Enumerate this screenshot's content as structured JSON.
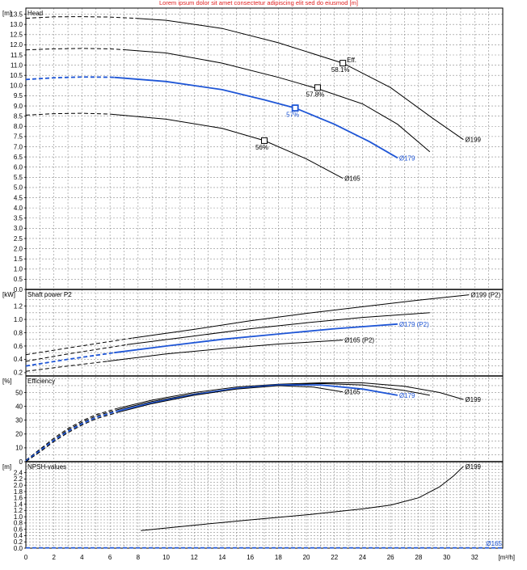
{
  "header_text": "Lorem ipsum dolor sit amet consectetur adipiscing elit sed do eiusmod [m]",
  "colors": {
    "selected": "#1f56d6",
    "other": "#000000"
  },
  "chart_data": {
    "type": "line",
    "x_axis": {
      "unit": "[m³/h]",
      "range": [
        0,
        34
      ],
      "ticks": [
        "0",
        "2",
        "4",
        "6",
        "8",
        "10",
        "12",
        "14",
        "16",
        "18",
        "20",
        "22",
        "24",
        "26",
        "28",
        "30",
        "32"
      ]
    },
    "panels": [
      {
        "id": "head",
        "title": "Head",
        "unit": "[m]",
        "ylim": [
          0,
          13.8
        ],
        "ticks": [
          "0.0",
          "0.5",
          "1.0",
          "1.5",
          "2.0",
          "2.5",
          "3.0",
          "3.5",
          "4.0",
          "4.5",
          "5.0",
          "5.5",
          "6.0",
          "6.5",
          "7.0",
          "7.5",
          "8.0",
          "8.5",
          "9.0",
          "9.5",
          "10.0",
          "10.5",
          "11.0",
          "11.5",
          "12.0",
          "12.5",
          "13.0",
          "13.5"
        ],
        "series": [
          {
            "name": "Ø199",
            "selected": false,
            "dashed_x": [
              0,
              2,
              4,
              6,
              7.8
            ],
            "dashed_y": [
              13.3,
              13.37,
              13.38,
              13.36,
              13.3
            ],
            "x": [
              7.8,
              10,
              14,
              18,
              22.6,
              26,
              29,
              31.2
            ],
            "y": [
              13.3,
              13.2,
              12.8,
              12.1,
              11.1,
              9.9,
              8.4,
              7.35
            ]
          },
          {
            "name": "",
            "selected": false,
            "dashed_x": [
              0,
              2,
              4,
              6,
              7.2
            ],
            "dashed_y": [
              11.75,
              11.8,
              11.82,
              11.8,
              11.75
            ],
            "x": [
              7.2,
              10,
              14,
              18,
              20.8,
              24,
              26.5,
              28.8
            ],
            "y": [
              11.75,
              11.6,
              11.1,
              10.4,
              9.85,
              9.1,
              8.1,
              6.75
            ]
          },
          {
            "name": "Ø179",
            "selected": true,
            "dashed_x": [
              0,
              2,
              4,
              6,
              6.3
            ],
            "dashed_y": [
              10.3,
              10.38,
              10.42,
              10.41,
              10.4
            ],
            "x": [
              6.3,
              10,
              14,
              17,
              19.2,
              22,
              24.5,
              26.5
            ],
            "y": [
              10.4,
              10.2,
              9.8,
              9.3,
              8.9,
              8.1,
              7.25,
              6.45
            ]
          },
          {
            "name": "Ø165",
            "selected": false,
            "dashed_x": [
              0,
              2,
              4,
              6,
              6.0
            ],
            "dashed_y": [
              8.55,
              8.62,
              8.64,
              8.6,
              8.6
            ],
            "x": [
              6.0,
              10,
              14,
              17,
              20,
              22.6
            ],
            "y": [
              8.6,
              8.35,
              7.9,
              7.3,
              6.4,
              5.45
            ]
          }
        ],
        "markers": [
          {
            "x": 22.6,
            "y": 11.1,
            "label": "58.1%",
            "selected": false
          },
          {
            "x": 20.8,
            "y": 9.9,
            "label": "57.8%",
            "selected": false
          },
          {
            "x": 19.2,
            "y": 8.9,
            "label": "57%",
            "selected": true
          },
          {
            "x": 17.0,
            "y": 7.3,
            "label": "56%",
            "selected": false
          }
        ],
        "annotation": "Eff."
      },
      {
        "id": "power",
        "title": "Shaft power P2",
        "unit": "[kW]",
        "ylim": [
          0.15,
          1.45
        ],
        "ticks": [
          "0.2",
          "0.4",
          "0.6",
          "0.8",
          "1.0",
          "1.2"
        ],
        "series": [
          {
            "name": "Ø199 (P2)",
            "selected": false,
            "dashed_x": [
              0,
              3,
              7.6
            ],
            "dashed_y": [
              0.47,
              0.57,
              0.72
            ],
            "x": [
              7.6,
              12,
              16,
              20,
              24,
              28,
              31.6
            ],
            "y": [
              0.72,
              0.85,
              0.98,
              1.09,
              1.19,
              1.29,
              1.37
            ]
          },
          {
            "name": "",
            "selected": false,
            "dashed_x": [
              0,
              3,
              7.2
            ],
            "dashed_y": [
              0.37,
              0.48,
              0.62
            ],
            "x": [
              7.2,
              12,
              16,
              20,
              24,
              28.8
            ],
            "y": [
              0.62,
              0.75,
              0.86,
              0.95,
              1.03,
              1.1
            ]
          },
          {
            "name": "Ø179 (P2)",
            "selected": true,
            "dashed_x": [
              0,
              3,
              6.3
            ],
            "dashed_y": [
              0.3,
              0.4,
              0.5
            ],
            "x": [
              6.3,
              10,
              14,
              18,
              22,
              26.5
            ],
            "y": [
              0.5,
              0.6,
              0.7,
              0.78,
              0.86,
              0.93
            ]
          },
          {
            "name": "Ø165 (P2)",
            "selected": false,
            "dashed_x": [
              0,
              3,
              5.8
            ],
            "dashed_y": [
              0.22,
              0.3,
              0.37
            ],
            "x": [
              5.8,
              10,
              14,
              18,
              22.6
            ],
            "y": [
              0.37,
              0.48,
              0.56,
              0.63,
              0.69
            ]
          }
        ]
      },
      {
        "id": "efficiency",
        "title": "Efficiency",
        "unit": "[%]",
        "ylim": [
          0,
          62
        ],
        "ticks": [
          "0",
          "10",
          "20",
          "30",
          "40",
          "50"
        ],
        "series": [
          {
            "name": "Ø199",
            "selected": false,
            "dashed_x": [
              0,
              1,
              2,
              3,
              4,
              5,
              6.5
            ],
            "dashed_y": [
              1,
              9,
              17,
              24,
              29.5,
              34,
              38.5
            ],
            "x": [
              6.5,
              9,
              12,
              15,
              18,
              21,
              24,
              27,
              29.5,
              31.2
            ],
            "y": [
              38.5,
              44.5,
              50,
              54,
              56,
              57,
              57,
              54.5,
              50,
              45
            ]
          },
          {
            "name": "",
            "selected": false,
            "dashed_x": [
              0,
              1,
              2,
              3,
              4,
              5,
              6.5
            ],
            "dashed_y": [
              1,
              8.5,
              16,
              23,
              28.5,
              33,
              37.5
            ],
            "x": [
              6.5,
              9,
              12,
              15,
              18,
              21,
              24,
              27,
              28.8
            ],
            "y": [
              37.5,
              43.5,
              49,
              53,
              55.5,
              56.5,
              55.5,
              51.5,
              48
            ]
          },
          {
            "name": "Ø179",
            "selected": true,
            "dashed_x": [
              0,
              1,
              2,
              3,
              4,
              5,
              6.5
            ],
            "dashed_y": [
              0.5,
              8,
              15.5,
              22,
              27.5,
              32,
              36.5
            ],
            "x": [
              6.5,
              9,
              12,
              15,
              18,
              21,
              24,
              26.5
            ],
            "y": [
              36.5,
              42.5,
              48.5,
              53,
              55.5,
              55.5,
              52.5,
              48
            ]
          },
          {
            "name": "Ø165",
            "selected": false,
            "dashed_x": [
              0,
              1,
              2,
              3,
              4,
              5,
              6.5
            ],
            "dashed_y": [
              0,
              7,
              14.5,
              21,
              26.5,
              31,
              35.5
            ],
            "x": [
              6.5,
              9,
              12,
              15,
              18,
              20.5,
              22.6
            ],
            "y": [
              35.5,
              42,
              48,
              52.5,
              55,
              54,
              50.5
            ]
          }
        ]
      },
      {
        "id": "npsh",
        "title": "NPSH-values",
        "unit": "[m]",
        "ylim": [
          0,
          2.75
        ],
        "ticks": [
          "0.0",
          "0.2",
          "0.4",
          "0.6",
          "0.8",
          "1.0",
          "1.2",
          "1.4",
          "1.6",
          "1.8",
          "2.0",
          "2.2",
          "2.4"
        ],
        "series": [
          {
            "name": "Ø199",
            "selected": false,
            "dashed_x": [],
            "dashed_y": [],
            "x": [
              8.2,
              12,
              16,
              20,
              24,
              26,
              28,
              29.5,
              30.5,
              31.2
            ],
            "y": [
              0.56,
              0.73,
              0.9,
              1.06,
              1.25,
              1.37,
              1.6,
              1.95,
              2.3,
              2.6
            ]
          },
          {
            "name": "Ø165",
            "selected": true,
            "dashed_x": [
              0,
              34
            ],
            "dashed_y": [
              0.01,
              0.01
            ],
            "x": [],
            "y": []
          }
        ]
      }
    ]
  }
}
